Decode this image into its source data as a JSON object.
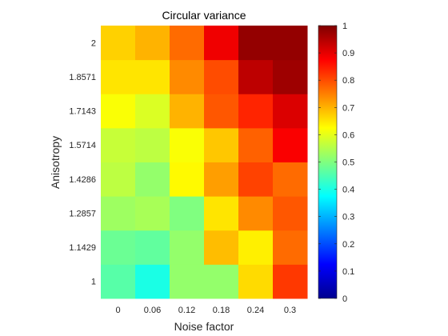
{
  "chart_data": {
    "type": "heatmap",
    "title": "Circular variance",
    "xlabel": "Noise factor",
    "ylabel": "Anisotropy",
    "x_categories": [
      "0",
      "0.06",
      "0.12",
      "0.18",
      "0.24",
      "0.3"
    ],
    "y_categories": [
      "1",
      "1.1429",
      "1.2857",
      "1.4286",
      "1.5714",
      "1.7143",
      "1.8571",
      "2"
    ],
    "values": [
      [
        0.46,
        0.4,
        0.52,
        0.52,
        0.66,
        0.82
      ],
      [
        0.48,
        0.47,
        0.52,
        0.69,
        0.64,
        0.77
      ],
      [
        0.53,
        0.54,
        0.5,
        0.65,
        0.74,
        0.79
      ],
      [
        0.56,
        0.52,
        0.63,
        0.72,
        0.81,
        0.77
      ],
      [
        0.57,
        0.56,
        0.62,
        0.68,
        0.78,
        0.88
      ],
      [
        0.62,
        0.59,
        0.7,
        0.79,
        0.84,
        0.91
      ],
      [
        0.65,
        0.65,
        0.74,
        0.8,
        0.94,
        0.97
      ],
      [
        0.67,
        0.7,
        0.77,
        0.89,
        0.98,
        0.98
      ]
    ],
    "colorbar": {
      "min": 0,
      "max": 1,
      "ticks": [
        "0",
        "0.1",
        "0.2",
        "0.3",
        "0.4",
        "0.5",
        "0.6",
        "0.7",
        "0.8",
        "0.9",
        "1"
      ],
      "colormap": "jet"
    },
    "grid": false
  }
}
